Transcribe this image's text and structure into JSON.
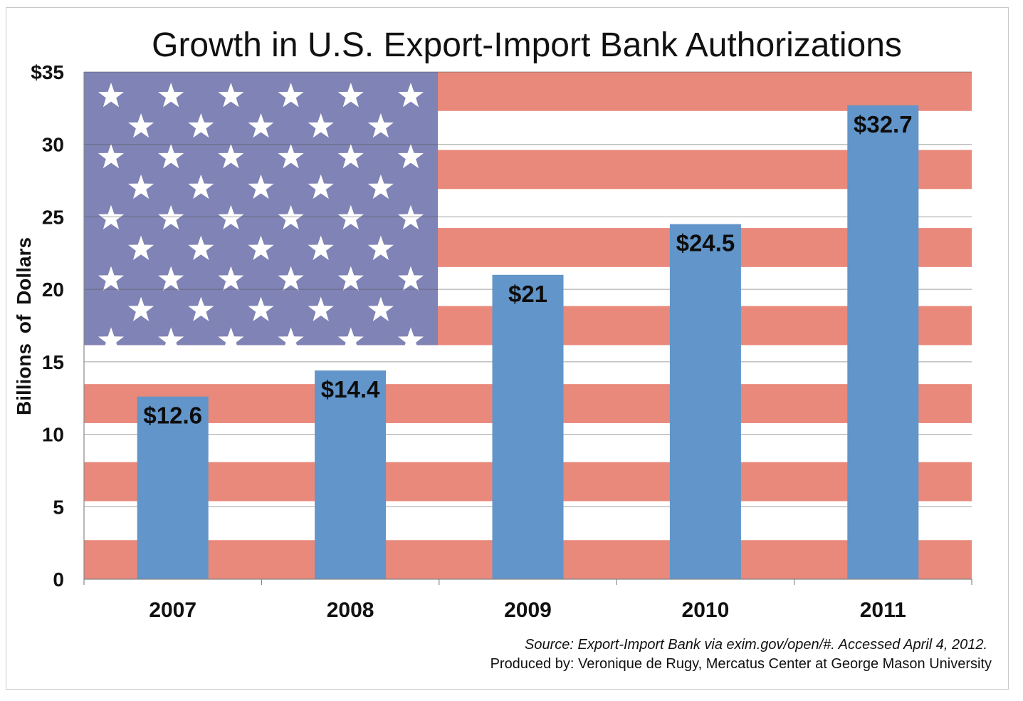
{
  "chart_data": {
    "type": "bar",
    "title": "Growth in U.S. Export-Import Bank Authorizations",
    "xlabel": "",
    "ylabel": "Billions  of Dollars",
    "categories": [
      "2007",
      "2008",
      "2009",
      "2010",
      "2011"
    ],
    "values": [
      12.6,
      14.4,
      21,
      24.5,
      32.7
    ],
    "value_labels": [
      "$12.6",
      "$14.4",
      "$21",
      "$24.5",
      "$32.7"
    ],
    "ylim": [
      0,
      35
    ],
    "y_ticks": [
      0,
      5,
      10,
      15,
      20,
      25,
      30,
      35
    ],
    "y_tick_labels": [
      "0",
      "5",
      "10",
      "15",
      "20",
      "25",
      "30",
      "$35"
    ],
    "grid": true,
    "legend": "none",
    "background": "american-flag",
    "colors": {
      "bar": "#6295c9",
      "flag_red": "#e8897b",
      "flag_white": "#ffffff",
      "flag_canton": "#7f83b5",
      "star": "#ffffff",
      "gridline": "#555555"
    }
  },
  "footer": {
    "source": "Source: Export-Import Bank via exim.gov/open/#. Accessed April 4, 2012.",
    "credit": "Produced by: Veronique de Rugy, Mercatus Center at George Mason University"
  }
}
